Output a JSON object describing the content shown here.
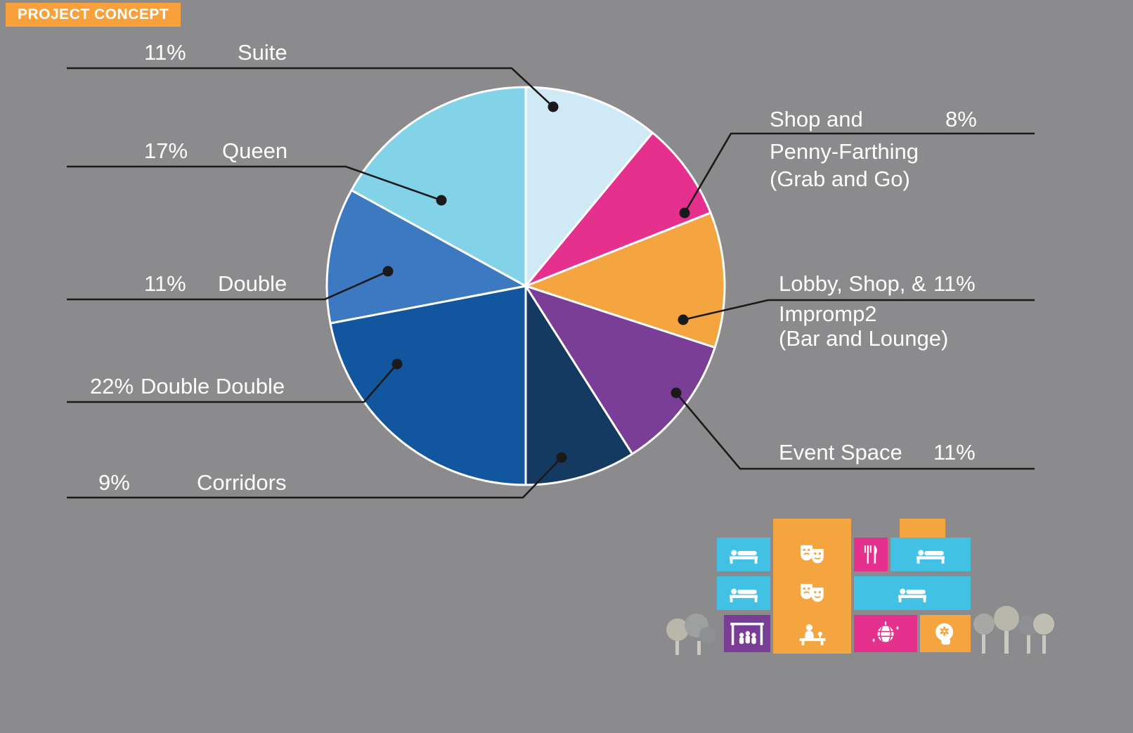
{
  "badge": {
    "label": "PROJECT CONCEPT"
  },
  "colors": {
    "background": "#8b8b8e",
    "badge_orange": "#f7a03c",
    "text": "#ffffff",
    "leader_line": "#1a1a1a",
    "slice_divider": "#ffffff"
  },
  "chart_data": {
    "type": "pie",
    "title": "PROJECT CONCEPT",
    "start_angle_deg": -90,
    "direction": "clockwise",
    "legend_position": "callout-labels",
    "slices": [
      {
        "label": "Suite",
        "value": 11,
        "color": "#cfe9f7"
      },
      {
        "label": "Shop and Penny-Farthing (Grab and Go)",
        "value": 8,
        "color": "#e6308e"
      },
      {
        "label": "Lobby, Shop, & Impromp2 (Bar and Lounge)",
        "value": 11,
        "color": "#f5a53f"
      },
      {
        "label": "Event Space",
        "value": 11,
        "color": "#7b3e97"
      },
      {
        "label": "Corridors",
        "value": 9,
        "color": "#153a61"
      },
      {
        "label": "Double Double",
        "value": 22,
        "color": "#1256a0"
      },
      {
        "label": "Double",
        "value": 11,
        "color": "#3c79c1"
      },
      {
        "label": "Queen",
        "value": 17,
        "color": "#82d3e8"
      }
    ]
  },
  "labels": {
    "left": [
      {
        "pct": "11%",
        "name": "Suite"
      },
      {
        "pct": "17%",
        "name": "Queen"
      },
      {
        "pct": "11%",
        "name": "Double"
      },
      {
        "pct": "22%",
        "name": "Double Double"
      },
      {
        "pct": "9%",
        "name": "Corridors"
      }
    ],
    "right": [
      {
        "pct": "8%",
        "lines": [
          "Shop and",
          "Penny-Farthing",
          "(Grab and Go)"
        ]
      },
      {
        "pct": "11%",
        "lines": [
          "Lobby, Shop, &",
          "Impromp2",
          "(Bar and Lounge)"
        ]
      },
      {
        "pct": "11%",
        "lines": [
          "Event Space"
        ]
      }
    ]
  },
  "building": {
    "icon_names": [
      "bed-icon",
      "theater-masks-icon",
      "utensils-icon",
      "stage-icon",
      "reception-desk-icon",
      "disco-ball-icon",
      "mind-gear-icon",
      "tree-icon"
    ],
    "palette": {
      "cyan": "#41c1e3",
      "orange": "#f5a53f",
      "pink": "#e6308e",
      "purple": "#7a3d96",
      "tree_grays": [
        "#b9b6aa",
        "#9da09f",
        "#8e9093",
        "#c1bfb3",
        "#a7a7a5"
      ]
    }
  }
}
